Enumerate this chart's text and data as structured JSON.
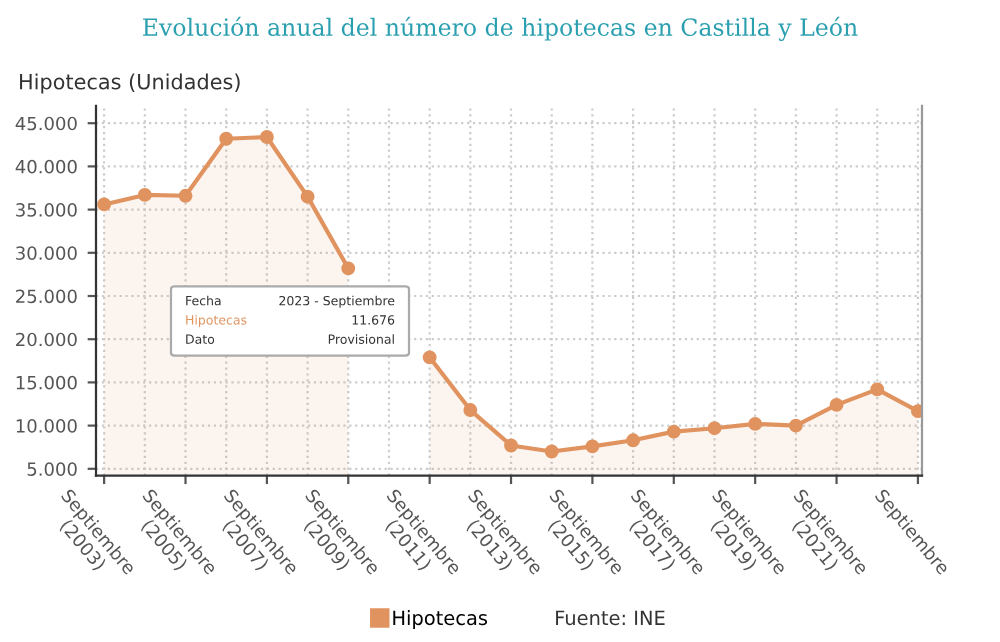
{
  "chart_data": {
    "type": "area",
    "title": "Evolución anual del número de hipotecas en Castilla y León",
    "ylabel": "Hipotecas (Unidades)",
    "categories": [
      "Septiembre\n(2003)",
      null,
      "Septiembre\n(2005)",
      null,
      "Septiembre\n(2007)",
      null,
      "Septiembre\n(2009)",
      null,
      "Septiembre\n(2011)",
      null,
      "Septiembre\n(2013)",
      null,
      "Septiembre\n(2015)",
      null,
      "Septiembre\n(2017)",
      null,
      "Septiembre\n(2019)",
      null,
      "Septiembre\n(2021)",
      null,
      "Septiembre"
    ],
    "series": [
      {
        "name": "Hipotecas",
        "color": "#e0935f",
        "values": [
          35600,
          36700,
          36600,
          43200,
          43400,
          36500,
          28200,
          null,
          17900,
          11800,
          7700,
          7000,
          7600,
          8300,
          9300,
          9700,
          10200,
          10000,
          12400,
          14200,
          11676
        ]
      }
    ],
    "ylim": [
      4200,
      47000
    ],
    "yticks": [
      {
        "value": 5000,
        "label": "5.000"
      },
      {
        "value": 10000,
        "label": "10.000"
      },
      {
        "value": 15000,
        "label": "15.000"
      },
      {
        "value": 20000,
        "label": "20.000"
      },
      {
        "value": 25000,
        "label": "25.000"
      },
      {
        "value": 30000,
        "label": "30.000"
      },
      {
        "value": 35000,
        "label": "35.000"
      },
      {
        "value": 40000,
        "label": "40.000"
      },
      {
        "value": 45000,
        "label": "45.000"
      }
    ],
    "grid": true,
    "legend": "bottom",
    "marker": "circle",
    "line_style": "solid",
    "annotations": [
      "Fecha",
      "2023 - Septiembre",
      "Hipotecas",
      "11.676",
      "Dato",
      "Provisional",
      "Fuente: INE"
    ]
  }
}
